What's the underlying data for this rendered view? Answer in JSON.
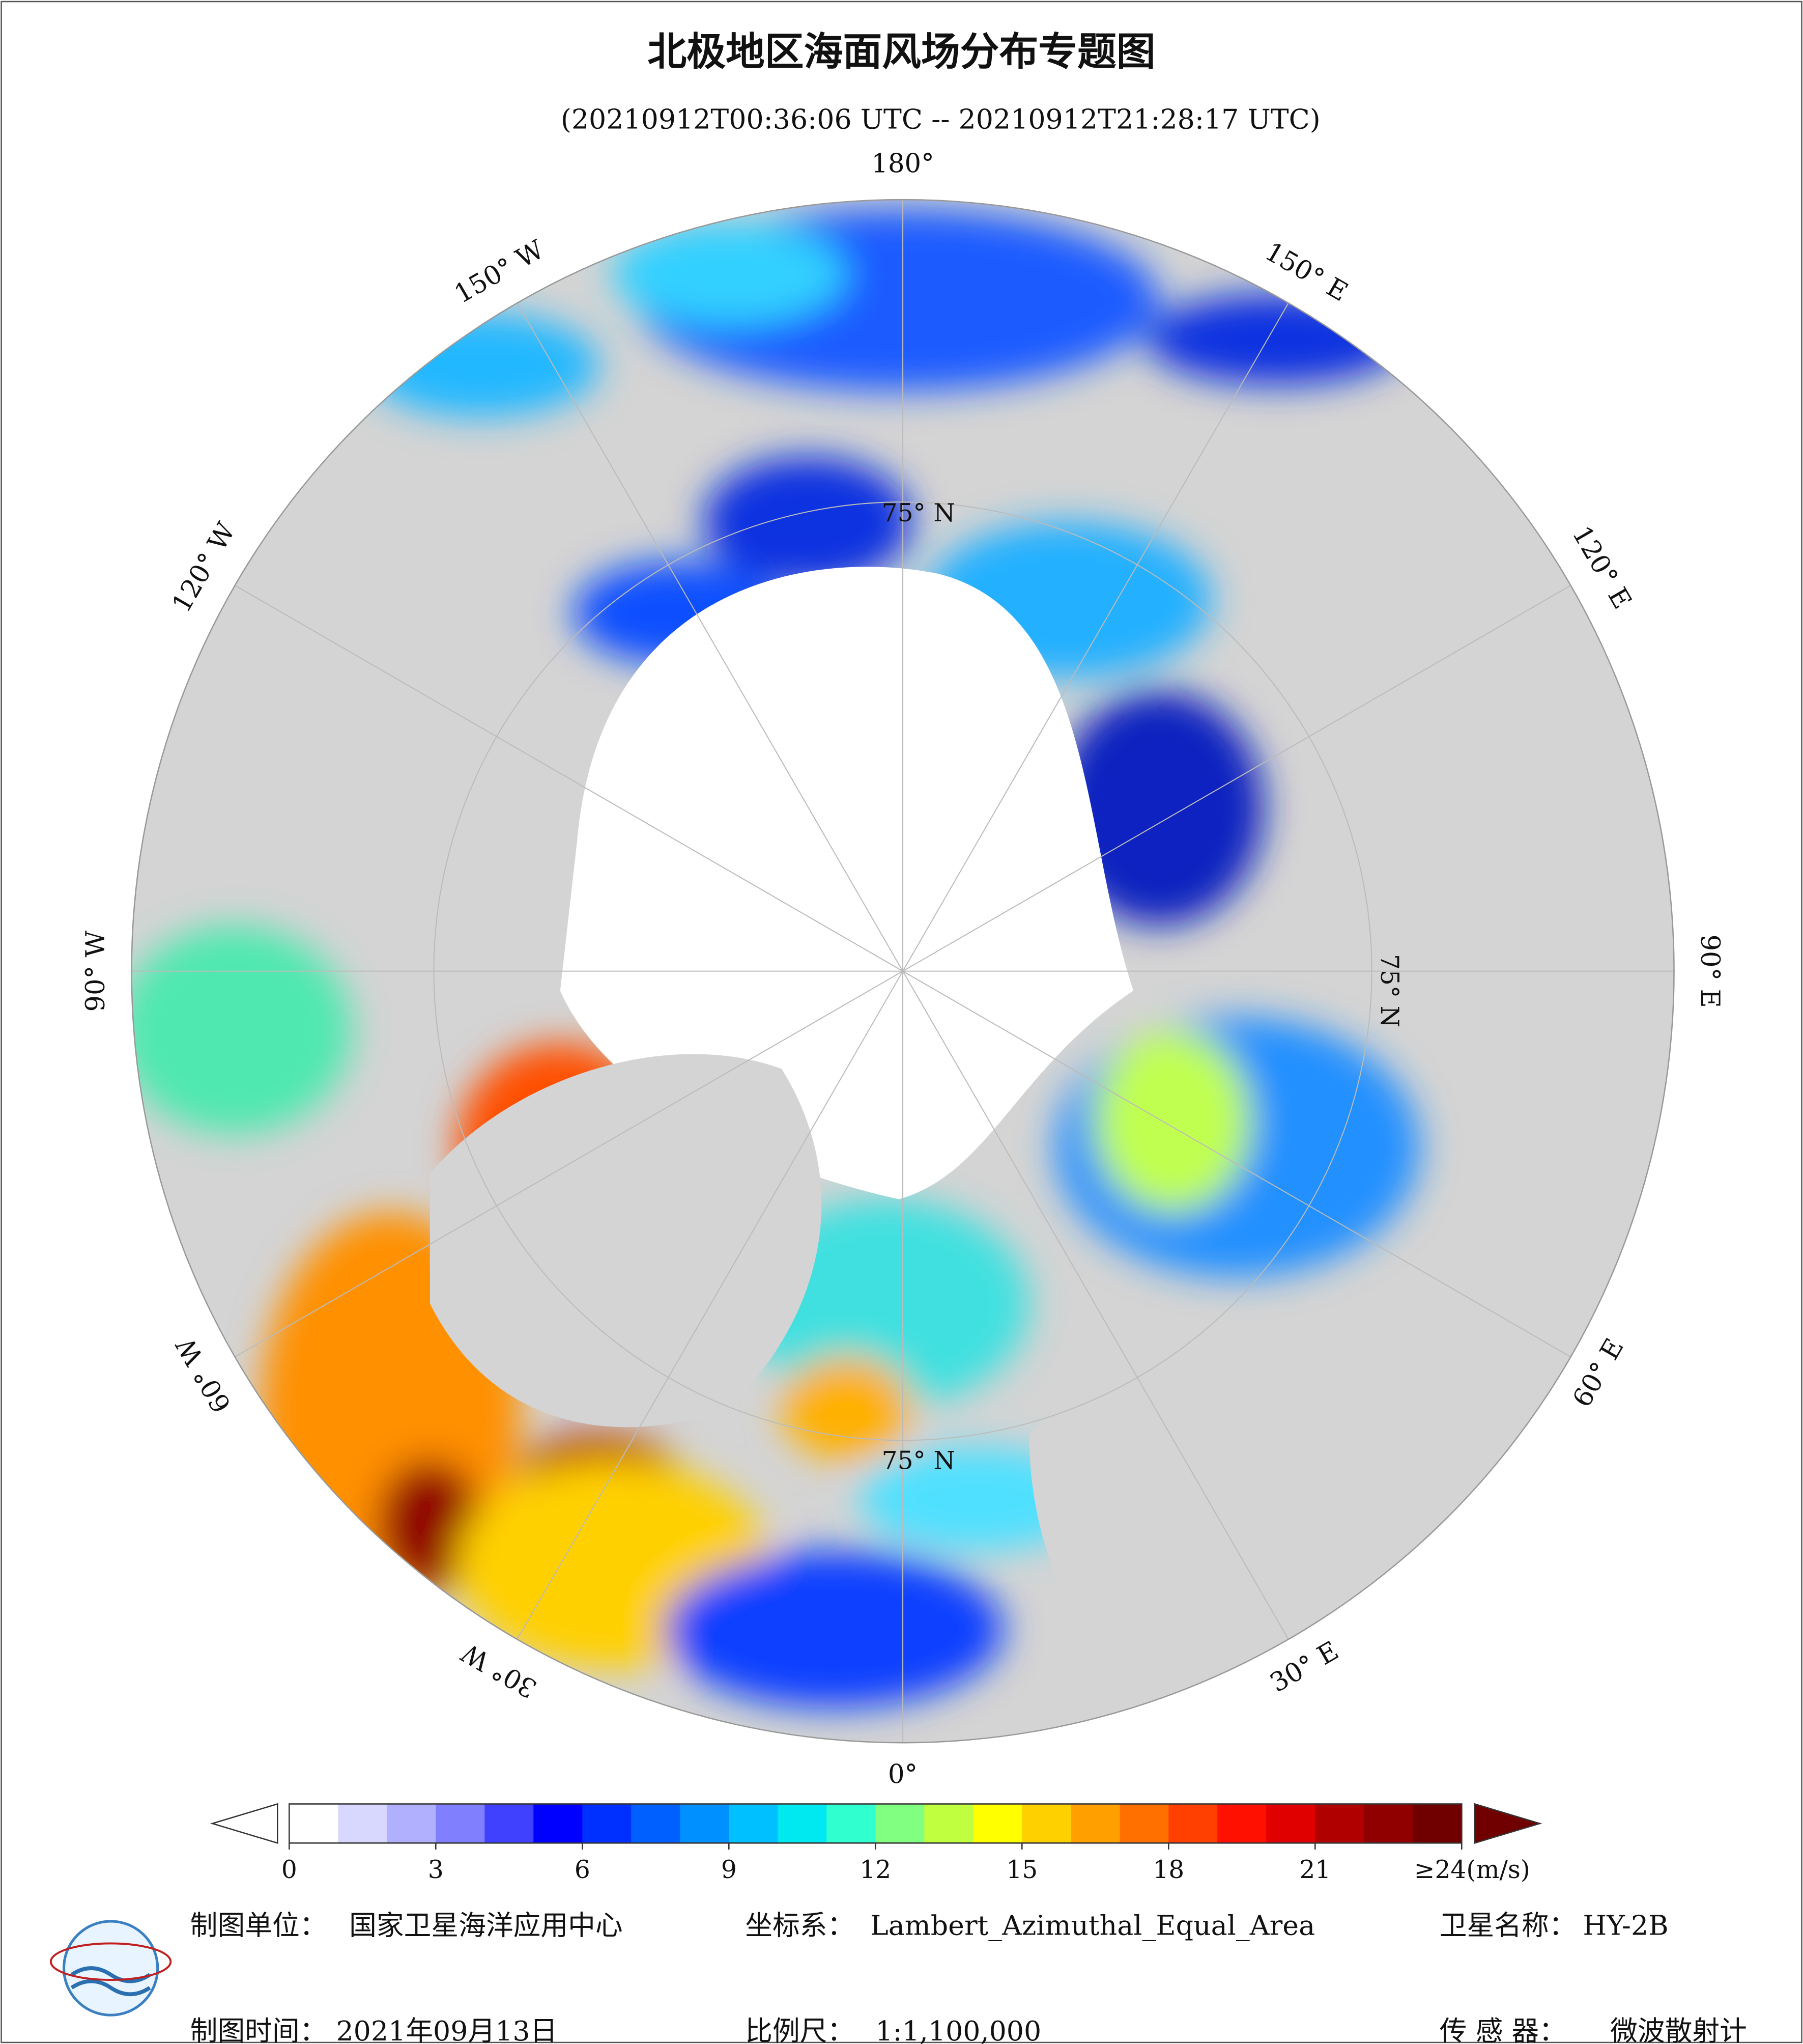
{
  "title": "北极地区海面风场分布专题图",
  "subtitle": "(20210912T00:36:06 UTC -- 20210912T21:28:17 UTC)",
  "map": {
    "lon_labels": [
      {
        "value": 180,
        "label": "180°"
      },
      {
        "value": 150,
        "label": "150° E"
      },
      {
        "value": 120,
        "label": "120° E"
      },
      {
        "value": 90,
        "label": "90° E"
      },
      {
        "value": 60,
        "label": "60° E"
      },
      {
        "value": 30,
        "label": "30° E"
      },
      {
        "value": 0,
        "label": "0°"
      },
      {
        "value": -30,
        "label": "30° W"
      },
      {
        "value": -60,
        "label": "60° W"
      },
      {
        "value": -90,
        "label": "90° W"
      },
      {
        "value": -120,
        "label": "120° W"
      },
      {
        "value": -150,
        "label": "150° W"
      }
    ],
    "lat_labels": [
      "75° N",
      "75° N",
      "75° N"
    ]
  },
  "colorbar": {
    "lim": [
      0,
      24
    ],
    "ticks": [
      0,
      3,
      6,
      9,
      12,
      15,
      18,
      21,
      {
        "value": 24,
        "label": "≥24(m/s)"
      }
    ],
    "colors": [
      "#ffffff",
      "#d8d8ff",
      "#b0b0ff",
      "#8080ff",
      "#4040ff",
      "#0000ff",
      "#0030ff",
      "#0060ff",
      "#0090ff",
      "#00c0ff",
      "#00e8f0",
      "#30ffd0",
      "#80ff80",
      "#c0ff40",
      "#ffff00",
      "#ffd000",
      "#ffa000",
      "#ff7000",
      "#ff4000",
      "#ff1000",
      "#e00000",
      "#b00000",
      "#900000",
      "#700000"
    ]
  },
  "footer": {
    "org_label": "制图单位：",
    "org": "国家卫星海洋应用中心",
    "crs_label": "坐标系：",
    "crs": "Lambert_Azimuthal_Equal_Area",
    "sat_label": "卫星名称：",
    "sat": "HY-2B",
    "date_label": "制图时间：",
    "date": "2021年09月13日",
    "scale_label": "比例尺：",
    "scale": "1:1,100,000",
    "sensor_label": "传 感 器：",
    "sensor": "微波散射计"
  }
}
